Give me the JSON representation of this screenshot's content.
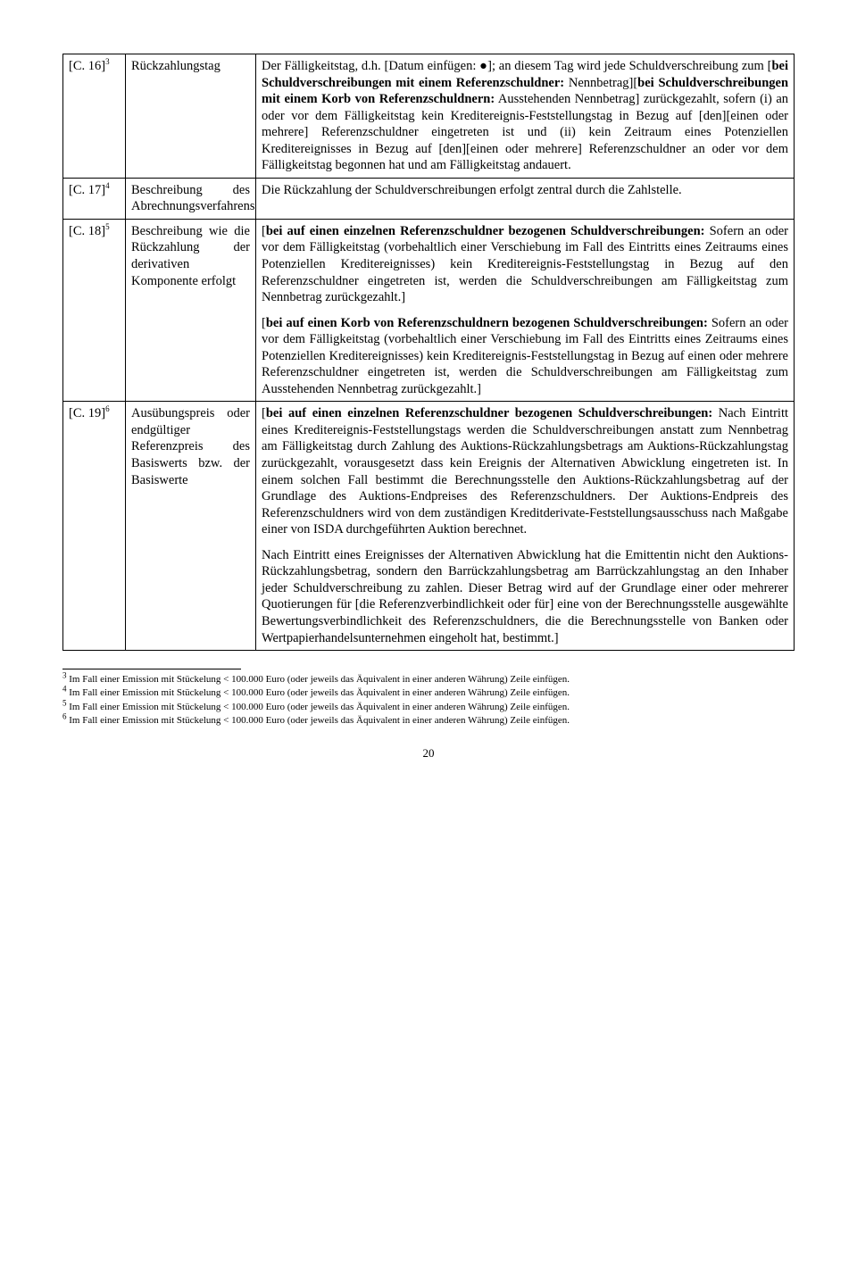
{
  "rows": [
    {
      "ref": "[C. 16]",
      "sup": "3",
      "label": "Rückzahlungstag",
      "paras": [
        "Der Fälligkeitstag, d.h. [Datum einfügen: ●]; an diesem Tag wird jede Schuldverschreibung zum [<b>bei Schuldverschreibungen mit einem Referenzschuldner:</b> Nennbetrag][<b>bei Schuldverschreibungen mit einem Korb von Referenzschuldnern:</b> Ausstehenden Nennbetrag] zurückgezahlt, sofern (i) an oder vor dem Fälligkeitstag kein Kreditereignis-Feststellungstag in Bezug auf [den][einen oder mehrere] Referenzschuldner eingetreten ist und (ii) kein Zeitraum eines Potenziellen Kreditereignisses in Bezug auf [den][einen oder mehrere] Referenzschuldner an oder vor dem Fälligkeitstag begonnen hat und am Fälligkeitstag andauert."
      ]
    },
    {
      "ref": "[C. 17]",
      "sup": "4",
      "label": "Beschreibung des Abrechnungsverfahrens",
      "paras": [
        "Die Rückzahlung der Schuldverschreibungen erfolgt zentral durch die Zahlstelle."
      ]
    },
    {
      "ref": "[C. 18]",
      "sup": "5",
      "label": "Beschreibung wie die Rückzahlung der derivativen Komponente erfolgt",
      "paras": [
        "[<b>bei auf einen einzelnen Referenzschuldner bezogenen Schuldverschreibungen:</b> Sofern an oder vor dem Fälligkeitstag (vorbehaltlich einer Verschiebung im Fall des Eintritts eines Zeitraums eines Potenziellen Kreditereignisses) kein Kreditereignis-Feststellungstag in Bezug auf den Referenzschuldner eingetreten ist, werden die Schuldverschreibungen am Fälligkeitstag zum Nennbetrag zurückgezahlt.]",
        "[<b>bei auf einen Korb von Referenzschuldnern bezogenen Schuldverschreibungen:</b> Sofern an oder vor dem Fälligkeitstag (vorbehaltlich einer Verschiebung im Fall des Eintritts eines Zeitraums eines Potenziellen Kreditereignisses) kein Kreditereignis-Feststellungstag in Bezug auf einen oder mehrere Referenzschuldner eingetreten ist, werden die Schuldverschreibungen am Fälligkeitstag zum Ausstehenden Nennbetrag zurückgezahlt.]"
      ]
    },
    {
      "ref": "[C. 19]",
      "sup": "6",
      "label": "Ausübungspreis oder endgültiger Referenzpreis des Basiswerts bzw. der Basiswerte",
      "paras": [
        "[<b>bei auf einen einzelnen Referenzschuldner bezogenen Schuldverschreibungen:</b> Nach Eintritt eines Kreditereignis-Feststellungstags werden die Schuldverschreibungen anstatt zum Nennbetrag am Fälligkeitstag durch Zahlung des Auktions-Rückzahlungsbetrags am Auktions-Rückzahlungstag zurückgezahlt, vorausgesetzt dass kein Ereignis der Alternativen Abwicklung eingetreten ist. In einem solchen Fall bestimmt die Berechnungsstelle den Auktions-Rückzahlungsbetrag auf der Grundlage des Auktions-Endpreises des Referenzschuldners. Der Auktions-Endpreis des Referenzschuldners wird von dem zuständigen Kreditderivate-Feststellungsausschuss nach Maßgabe einer von ISDA durchgeführten Auktion berechnet.",
        "Nach Eintritt eines Ereignisses der Alternativen Abwicklung hat die Emittentin nicht den Auktions-Rückzahlungsbetrag, sondern den Barrückzahlungsbetrag am Barrückzahlungstag an den Inhaber jeder Schuldverschreibung zu zahlen. Dieser Betrag wird auf der Grundlage einer oder mehrerer Quotierungen für [die Referenzverbindlichkeit oder für] eine von der Berechnungsstelle ausgewählte Bewertungsverbindlichkeit des Referenzschuldners, die die Berechnungsstelle von Banken oder Wertpapierhandelsunternehmen eingeholt hat, bestimmt.]"
      ]
    }
  ],
  "footnotes": [
    {
      "n": "3",
      "text": "Im Fall einer Emission mit Stückelung < 100.000 Euro (oder jeweils das Äquivalent in einer anderen Währung) Zeile einfügen."
    },
    {
      "n": "4",
      "text": "Im Fall einer Emission mit Stückelung < 100.000 Euro (oder jeweils das Äquivalent in einer anderen Währung) Zeile einfügen."
    },
    {
      "n": "5",
      "text": "Im Fall einer Emission mit Stückelung < 100.000 Euro (oder jeweils das Äquivalent in einer anderen Währung) Zeile einfügen."
    },
    {
      "n": "6",
      "text": "Im Fall einer Emission mit Stückelung < 100.000 Euro (oder jeweils das Äquivalent in einer anderen Währung) Zeile einfügen."
    }
  ],
  "page_number": "20"
}
